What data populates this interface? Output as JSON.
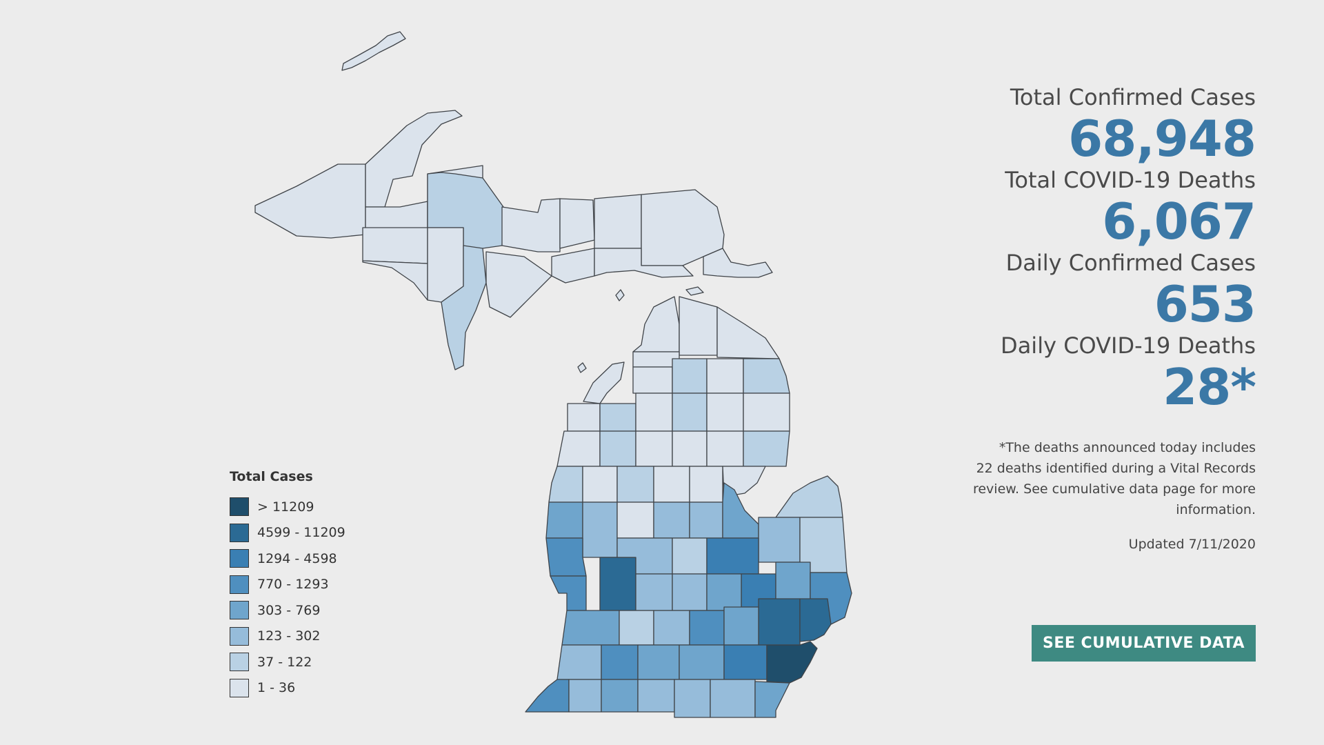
{
  "stats": [
    {
      "label": "Total Confirmed Cases",
      "value": "68,948"
    },
    {
      "label": "Total COVID-19 Deaths",
      "value": "6,067"
    },
    {
      "label": "Daily Confirmed Cases",
      "value": "653"
    },
    {
      "label": "Daily COVID-19 Deaths",
      "value": "28*"
    }
  ],
  "footnote": {
    "lines": [
      "*The deaths announced today includes",
      "22 deaths identified during a Vital Records",
      "review. See cumulative data page for more",
      "information."
    ]
  },
  "updated": "Updated 7/11/2020",
  "cta_label": "SEE CUMULATIVE DATA",
  "legend": {
    "title": "Total Cases",
    "items": [
      {
        "label": "> 11209",
        "color": "#1f4e6b"
      },
      {
        "label": "4599 - 11209",
        "color": "#2b6a94"
      },
      {
        "label": "1294 - 4598",
        "color": "#3a7fb3"
      },
      {
        "label": "770 - 1293",
        "color": "#4f8fbf"
      },
      {
        "label": "303 - 769",
        "color": "#6fa5cc"
      },
      {
        "label": "123 - 302",
        "color": "#96bcda"
      },
      {
        "label": "37 - 122",
        "color": "#b9d1e4"
      },
      {
        "label": "1 - 36",
        "color": "#dbe3ec"
      }
    ]
  },
  "map": {
    "region": "Michigan",
    "shading": "county total cases"
  }
}
